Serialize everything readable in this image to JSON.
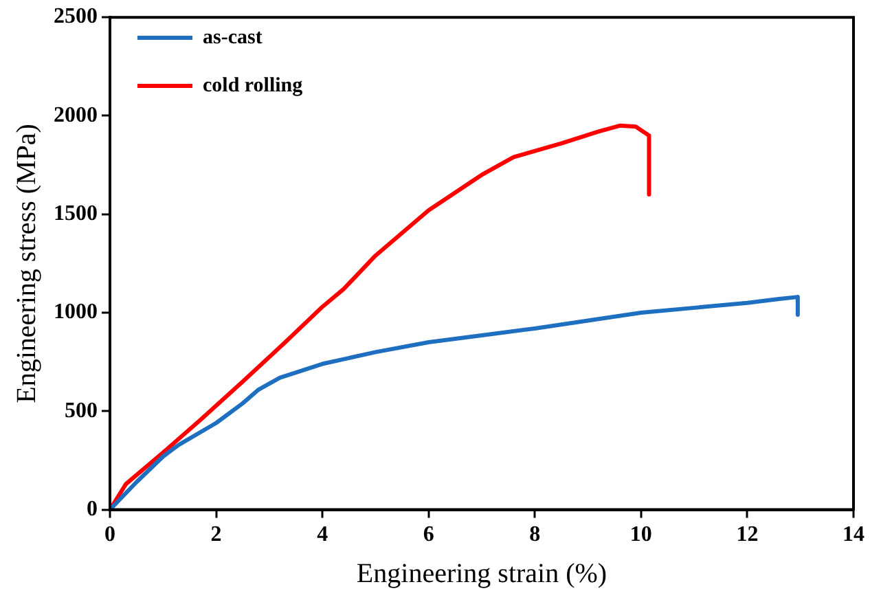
{
  "chart_data": {
    "type": "line",
    "xlabel": "Engineering strain (%)",
    "ylabel": "Engineering stress (MPa)",
    "xlim": [
      0,
      14
    ],
    "ylim": [
      0,
      2500
    ],
    "xticks": [
      0,
      2,
      4,
      6,
      8,
      10,
      12,
      14
    ],
    "yticks": [
      0,
      500,
      1000,
      1500,
      2000,
      2500
    ],
    "grid": false,
    "legend": "top left",
    "marker": "none",
    "line_style": "solid",
    "series": [
      {
        "name": "as-cast",
        "color": "#1f6fc0",
        "x": [
          0,
          0.5,
          1,
          1.3,
          2,
          2.5,
          2.8,
          3.2,
          4,
          5,
          6,
          7,
          8,
          9,
          10,
          11,
          12,
          12.6,
          12.95,
          12.95
        ],
        "values": [
          0,
          140,
          270,
          330,
          440,
          540,
          610,
          670,
          740,
          800,
          850,
          885,
          920,
          960,
          1000,
          1025,
          1050,
          1070,
          1080,
          990
        ]
      },
      {
        "name": "cold rolling",
        "color": "#ff0000",
        "x": [
          0,
          0.3,
          1,
          1.7,
          2.5,
          3.3,
          4,
          4.4,
          5,
          6,
          7,
          7.6,
          8.5,
          9.2,
          9.6,
          9.9,
          10.15,
          10.15
        ],
        "values": [
          0,
          130,
          290,
          455,
          650,
          850,
          1030,
          1120,
          1290,
          1520,
          1700,
          1790,
          1860,
          1920,
          1950,
          1945,
          1900,
          1600
        ]
      }
    ]
  }
}
